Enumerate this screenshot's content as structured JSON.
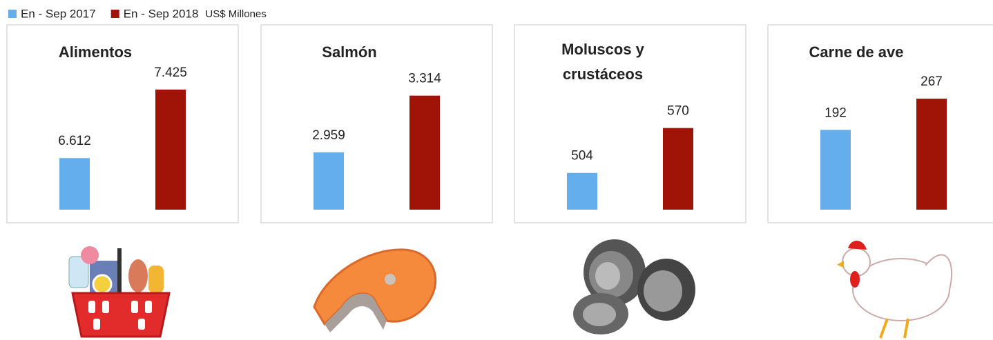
{
  "unit_label": "US$ Millones",
  "chart_data": [
    {
      "type": "bar",
      "title": [
        "Alimentos"
      ],
      "ylim": [
        6000,
        7800
      ],
      "series": [
        {
          "name": "En - Sep 2017",
          "color": "#64aeed",
          "values": [
            6612
          ],
          "value_labels": [
            "6.612"
          ]
        },
        {
          "name": "En - Sep 2018",
          "color": "#a01408",
          "values": [
            7425
          ],
          "value_labels": [
            "7.425"
          ]
        }
      ]
    },
    {
      "type": "bar",
      "title": [
        "Salmón"
      ],
      "ylim": [
        2600,
        3550
      ],
      "series": [
        {
          "name": "En - Sep 2017",
          "color": "#64aeed",
          "values": [
            2959
          ],
          "value_labels": [
            "2.959"
          ]
        },
        {
          "name": "En - Sep 2018",
          "color": "#a01408",
          "values": [
            3314
          ],
          "value_labels": [
            "3.314"
          ]
        }
      ]
    },
    {
      "type": "bar",
      "title": [
        "Moluscos y",
        "crustáceos"
      ],
      "ylim": [
        450,
        673
      ],
      "series": [
        {
          "name": "En - Sep 2017",
          "color": "#64aeed",
          "values": [
            504
          ]
        },
        {
          "name": "En - Sep 2018",
          "color": "#a01408",
          "values": [
            570
          ]
        }
      ]
    },
    {
      "type": "bar",
      "title": [
        "Carne de ave"
      ],
      "ylim": [
        0,
        365
      ],
      "series": [
        {
          "name": "En - Sep 2017",
          "color": "#64aeed",
          "values": [
            192
          ]
        },
        {
          "name": "En - Sep 2018",
          "color": "#a01408",
          "values": [
            267
          ]
        }
      ]
    }
  ]
}
